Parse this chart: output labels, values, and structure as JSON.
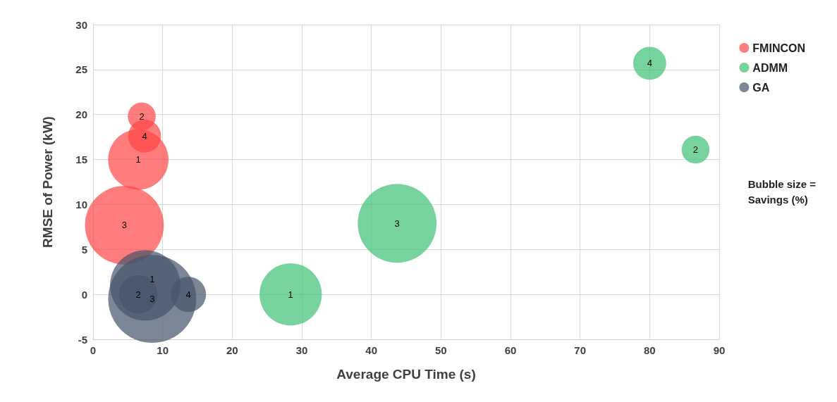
{
  "chart_data": {
    "type": "bubble",
    "xlabel": "Average CPU Time (s)",
    "ylabel": "RMSE of Power (kW)",
    "xlim": [
      0,
      90
    ],
    "xticks": [
      0,
      10,
      20,
      30,
      40,
      50,
      60,
      70,
      80,
      90
    ],
    "ylim": [
      -5,
      30
    ],
    "yticks": [
      -5,
      0,
      5,
      10,
      15,
      20,
      25,
      30
    ],
    "grid": true,
    "legend": "right",
    "annotations": [
      "Bubble size =\nSavings (%)",
      {
        "text": "1",
        "x": 6.5,
        "y": 15.0
      },
      {
        "text": "2",
        "x": 7.0,
        "y": 19.8
      },
      {
        "text": "3",
        "x": 4.5,
        "y": 7.7
      },
      {
        "text": "4",
        "x": 7.4,
        "y": 17.6
      },
      {
        "text": "1",
        "x": 28.4,
        "y": 0.0
      },
      {
        "text": "2",
        "x": 86.6,
        "y": 16.1
      },
      {
        "text": "3",
        "x": 43.7,
        "y": 7.9
      },
      {
        "text": "4",
        "x": 80.0,
        "y": 25.7
      },
      {
        "text": "1",
        "x": 8.5,
        "y": 1.7
      },
      {
        "text": "2",
        "x": 6.5,
        "y": 0.0
      },
      {
        "text": "3",
        "x": 8.5,
        "y": -0.5
      },
      {
        "text": "4",
        "x": 13.7,
        "y": 0.0
      }
    ],
    "series": [
      {
        "name": "FMINCON",
        "color": "#ff4444",
        "x": [
          4.5,
          6.5,
          7.4,
          7.0
        ],
        "values": [
          7.7,
          15.0,
          17.6,
          19.8
        ],
        "sizes": [
          0.8,
          0.47,
          0.14,
          0.1
        ]
      },
      {
        "name": "ADMM",
        "color": "#3cc074",
        "x": [
          43.7,
          28.4,
          80.0,
          86.6
        ],
        "values": [
          7.9,
          0.0,
          25.7,
          16.1
        ],
        "sizes": [
          0.8,
          0.5,
          0.14,
          0.1
        ]
      },
      {
        "name": "GA",
        "color": "#44546a",
        "x": [
          8.5,
          7.5,
          13.7,
          6.5
        ],
        "values": [
          -0.5,
          1.0,
          0.0,
          0.0
        ],
        "sizes": [
          1,
          0.64,
          0.16,
          0.19
        ]
      }
    ]
  }
}
